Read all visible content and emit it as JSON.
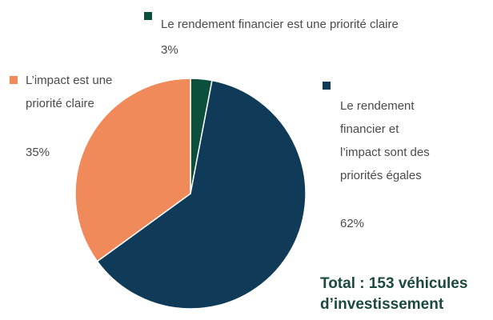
{
  "chart_data": {
    "type": "pie",
    "categories": [
      "Le rendement financier est une priorité claire",
      "Le rendement financier et l’impact sont des priorités égales",
      "L’impact est une priorité claire"
    ],
    "values": [
      3,
      62,
      35
    ],
    "value_labels": [
      "3%",
      "62%",
      "35%"
    ],
    "colors": [
      "#0c4f3c",
      "#0f3a58",
      "#f08a5b"
    ],
    "annotation": "Total : 153 véhicules d’investissement"
  }
}
